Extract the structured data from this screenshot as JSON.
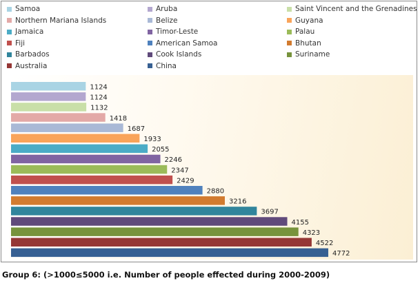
{
  "caption": "Group 6: (>1000≤5000 i.e. Number of people effected during 2000-2009)",
  "chart_data": {
    "type": "bar",
    "orientation": "horizontal",
    "title": "",
    "xlabel": "",
    "ylabel": "",
    "xlim": [
      0,
      5000
    ],
    "grid": false,
    "legend_position": "top",
    "series": [
      {
        "name": "Samoa",
        "value": 1124,
        "color": "#a9d4e4"
      },
      {
        "name": "Aruba",
        "value": 1124,
        "color": "#b3a7cf"
      },
      {
        "name": "Saint Vincent and the Grenadines",
        "value": 1132,
        "color": "#c9dfa8"
      },
      {
        "name": "Northern Mariana Islands",
        "value": 1418,
        "color": "#e3a9a7"
      },
      {
        "name": "Belize",
        "value": 1687,
        "color": "#a9b9d6"
      },
      {
        "name": "Guyana",
        "value": 1933,
        "color": "#f9a45a"
      },
      {
        "name": "Jamaica",
        "value": 2055,
        "color": "#4bacc6"
      },
      {
        "name": "Timor-Leste",
        "value": 2246,
        "color": "#8064a2"
      },
      {
        "name": "Palau",
        "value": 2347,
        "color": "#9bbb59"
      },
      {
        "name": "Fiji",
        "value": 2429,
        "color": "#c0504d"
      },
      {
        "name": "American Samoa",
        "value": 2880,
        "color": "#4f81bd"
      },
      {
        "name": "Bhutan",
        "value": 3216,
        "color": "#d27b2f"
      },
      {
        "name": "Barbados",
        "value": 3697,
        "color": "#31859c"
      },
      {
        "name": "Cook Islands",
        "value": 4155,
        "color": "#604a7b"
      },
      {
        "name": "Suriname",
        "value": 4323,
        "color": "#77933c"
      },
      {
        "name": "Australia",
        "value": 4522,
        "color": "#953735"
      },
      {
        "name": "China",
        "value": 4772,
        "color": "#376092"
      }
    ]
  }
}
